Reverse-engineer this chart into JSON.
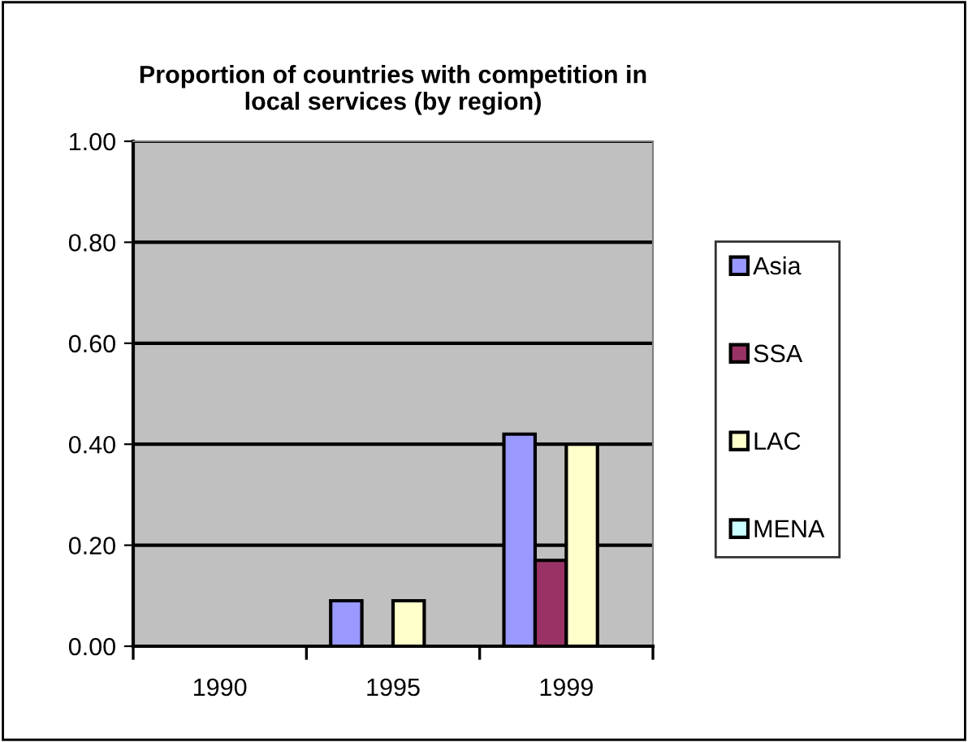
{
  "chart_data": {
    "type": "bar",
    "title": "Proportion of countries with competition in\nlocal services (by region)",
    "categories": [
      "1990",
      "1995",
      "1999"
    ],
    "series": [
      {
        "name": "Asia",
        "color": "#9999ff",
        "values": [
          null,
          0.09,
          0.42
        ]
      },
      {
        "name": "SSA",
        "color": "#993366",
        "values": [
          null,
          null,
          0.17
        ]
      },
      {
        "name": "LAC",
        "color": "#ffffcc",
        "values": [
          null,
          0.09,
          0.4
        ]
      },
      {
        "name": "MENA",
        "color": "#ccffff",
        "values": [
          null,
          null,
          null
        ]
      }
    ],
    "ylim": [
      0,
      1
    ],
    "yticks": [
      {
        "value": 0,
        "label": "0.00"
      },
      {
        "value": 0.2,
        "label": "0.20"
      },
      {
        "value": 0.4,
        "label": "0.40"
      },
      {
        "value": 0.6,
        "label": "0.60"
      },
      {
        "value": 0.8,
        "label": "0.80"
      },
      {
        "value": 1,
        "label": "1.00"
      }
    ],
    "grid": "y",
    "legend": "right"
  }
}
